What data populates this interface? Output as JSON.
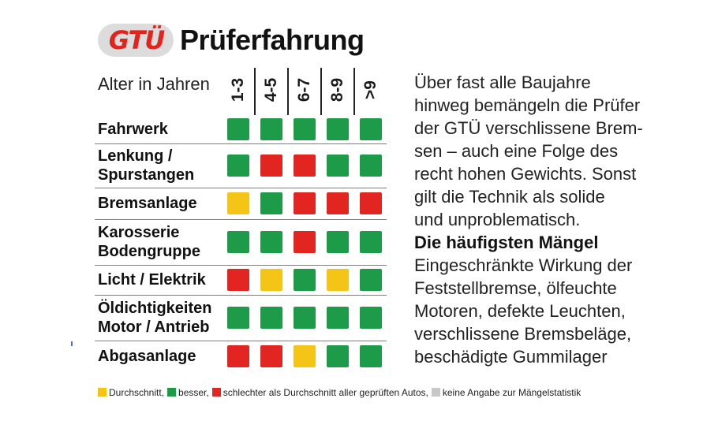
{
  "header": {
    "logo_text": "GTÜ",
    "title": "Prüferfahrung"
  },
  "table": {
    "age_label": "Alter in Jahren",
    "year_ranges": [
      "1-3",
      "4-5",
      "6-7",
      "8-9",
      ">9"
    ],
    "rows": [
      {
        "label_lines": [
          "Fahrwerk"
        ],
        "ratings": [
          "green",
          "green",
          "green",
          "green",
          "green"
        ]
      },
      {
        "label_lines": [
          "Lenkung /",
          "Spurstangen"
        ],
        "ratings": [
          "green",
          "red",
          "red",
          "green",
          "green"
        ]
      },
      {
        "label_lines": [
          "Bremsanlage"
        ],
        "ratings": [
          "yellow",
          "green",
          "red",
          "red",
          "red"
        ]
      },
      {
        "label_lines": [
          "Karosserie",
          "Bodengruppe"
        ],
        "ratings": [
          "green",
          "green",
          "red",
          "green",
          "green"
        ]
      },
      {
        "label_lines": [
          "Licht / Elektrik"
        ],
        "ratings": [
          "red",
          "yellow",
          "green",
          "yellow",
          "green"
        ]
      },
      {
        "label_lines": [
          "Öldichtigkeiten",
          "Motor / Antrieb"
        ],
        "ratings": [
          "green",
          "green",
          "green",
          "green",
          "green"
        ]
      },
      {
        "label_lines": [
          "Abgasanlage"
        ],
        "ratings": [
          "red",
          "red",
          "yellow",
          "green",
          "green"
        ]
      }
    ]
  },
  "colors": {
    "green": "#1e9b48",
    "red": "#e32521",
    "yellow": "#f4c417",
    "grey": "#c8c8c8",
    "logo_red": "#e3231c"
  },
  "side_text": {
    "intro_lines": [
      "Über fast alle Baujahre",
      "hinweg bemängeln die Prüfer",
      "der GTÜ verschlissene Brem-",
      "sen – auch eine Folge des",
      "recht hohen Gewichts. Sonst",
      "gilt die Technik als solide",
      "und unproblematisch."
    ],
    "heading": "Die häufigsten Mängel",
    "body_lines": [
      "Eingeschränkte Wirkung der",
      "Feststellbremse, ölfeuchte",
      "Motoren, defekte Leuchten,",
      "verschlissene Bremsbeläge,",
      "beschädigte Gummilager"
    ]
  },
  "legend": [
    {
      "color": "yellow",
      "text": "Durchschnitt,"
    },
    {
      "color": "green",
      "text": "besser,"
    },
    {
      "color": "red",
      "text": "schlechter als Durchschnitt aller geprüften Autos,"
    },
    {
      "color": "grey",
      "text": "keine Angabe zur Mängelstatistik"
    }
  ]
}
